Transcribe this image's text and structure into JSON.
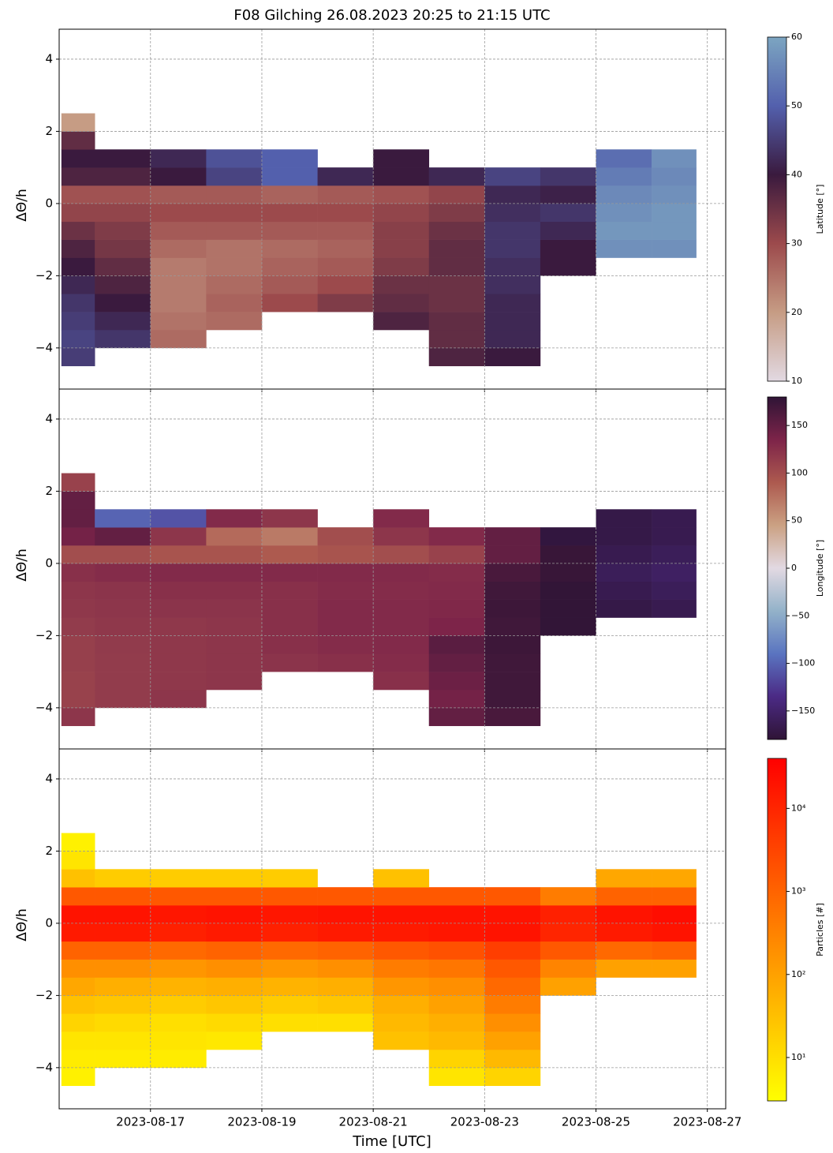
{
  "chart_data": [
    {
      "type": "heatmap",
      "title": "F08 Gilching 26.08.2023 20:25 to 21:15 UTC",
      "ylabel": "ΔΘ/h",
      "xlim": [
        15.36,
        27.33
      ],
      "xticks": [
        17,
        19,
        21,
        23,
        25,
        27
      ],
      "ylim": [
        -5.14,
        4.83
      ],
      "yticks": [
        {
          "value": -4,
          "label": "−4"
        },
        {
          "value": -2,
          "label": "−2"
        },
        0,
        2,
        4
      ],
      "grid": true,
      "xbins": [
        15.4,
        16,
        17,
        18,
        19,
        20,
        21,
        22,
        23,
        24,
        25,
        26,
        26.8
      ],
      "ybins": [
        -4.5,
        -4,
        -3.5,
        -3,
        -2.5,
        -2,
        -1.5,
        -1,
        -0.5,
        0,
        0.5,
        1,
        1.5,
        2,
        2.5
      ],
      "z": [
        [
          45,
          null,
          null,
          null,
          null,
          null,
          null,
          38,
          40,
          null,
          null,
          null
        ],
        [
          46,
          44,
          26,
          null,
          null,
          null,
          null,
          36,
          42,
          null,
          null,
          null
        ],
        [
          45,
          42,
          25,
          26,
          null,
          null,
          38,
          36,
          42,
          null,
          null,
          null
        ],
        [
          44,
          40,
          24,
          27,
          30,
          33,
          36,
          35,
          42,
          null,
          null,
          null
        ],
        [
          42,
          38,
          24,
          26,
          28,
          30,
          35,
          35,
          43,
          null,
          null,
          null
        ],
        [
          40,
          36,
          24,
          25,
          27,
          28,
          33,
          36,
          43,
          40,
          null,
          null
        ],
        [
          38,
          34,
          26,
          25,
          26,
          27,
          32,
          36,
          44,
          40,
          57,
          57
        ],
        [
          35,
          33,
          28,
          28,
          28,
          28,
          32,
          35,
          44,
          42,
          58,
          58
        ],
        [
          31,
          31,
          30,
          30,
          30,
          30,
          31,
          33,
          43,
          44,
          57,
          58
        ],
        [
          29,
          29,
          28,
          28,
          27,
          28,
          29,
          31,
          42,
          41,
          56,
          57
        ],
        [
          38,
          38,
          40,
          46,
          50,
          42,
          40,
          42,
          46,
          44,
          54,
          56
        ],
        [
          40,
          40,
          42,
          48,
          50,
          null,
          40,
          null,
          null,
          null,
          52,
          57
        ],
        [
          36,
          null,
          null,
          null,
          null,
          null,
          null,
          null,
          null,
          null,
          null,
          null
        ],
        [
          20,
          null,
          null,
          null,
          null,
          null,
          null,
          null,
          null,
          null,
          null,
          null
        ]
      ],
      "colorbar": {
        "label": "Latitude [°]",
        "lim": [
          10,
          60
        ],
        "ticks": [
          10,
          20,
          30,
          40,
          50,
          60
        ],
        "log": false,
        "colors": [
          "#e2d9e2",
          "#c69c84",
          "#9c4a4c",
          "#3a1a3e",
          "#5360ad",
          "#7ca5c1"
        ]
      }
    },
    {
      "type": "heatmap",
      "ylabel": "ΔΘ/h",
      "xlim": [
        15.36,
        27.33
      ],
      "xticks": [
        17,
        19,
        21,
        23,
        25,
        27
      ],
      "ylim": [
        -5.14,
        4.83
      ],
      "yticks": [
        {
          "value": -4,
          "label": "−4"
        },
        {
          "value": -2,
          "label": "−2"
        },
        0,
        2,
        4
      ],
      "grid": true,
      "xbins": [
        15.4,
        16,
        17,
        18,
        19,
        20,
        21,
        22,
        23,
        24,
        25,
        26,
        26.8
      ],
      "ybins": [
        -4.5,
        -4,
        -3.5,
        -3,
        -2.5,
        -2,
        -1.5,
        -1,
        -0.5,
        0,
        0.5,
        1,
        1.5,
        2,
        2.5
      ],
      "z": [
        [
          120,
          null,
          null,
          null,
          null,
          null,
          null,
          150,
          165,
          null,
          null,
          null
        ],
        [
          110,
          115,
          120,
          null,
          null,
          null,
          null,
          140,
          170,
          null,
          null,
          null
        ],
        [
          110,
          115,
          118,
          120,
          null,
          null,
          125,
          145,
          170,
          null,
          null,
          null
        ],
        [
          112,
          115,
          118,
          120,
          122,
          125,
          128,
          150,
          170,
          null,
          null,
          null
        ],
        [
          112,
          116,
          118,
          120,
          125,
          128,
          130,
          155,
          172,
          null,
          null,
          null
        ],
        [
          115,
          118,
          118,
          120,
          125,
          130,
          130,
          135,
          170,
          178,
          null,
          null
        ],
        [
          118,
          120,
          122,
          122,
          125,
          130,
          130,
          132,
          172,
          178,
          -170,
          -165
        ],
        [
          120,
          122,
          125,
          125,
          125,
          128,
          128,
          130,
          170,
          178,
          -165,
          -160
        ],
        [
          125,
          128,
          130,
          130,
          130,
          130,
          130,
          128,
          165,
          175,
          -160,
          -155
        ],
        [
          100,
          100,
          95,
          95,
          90,
          95,
          100,
          110,
          150,
          175,
          -165,
          -160
        ],
        [
          140,
          150,
          120,
          80,
          70,
          100,
          120,
          130,
          150,
          -175,
          -170,
          -165
        ],
        [
          150,
          -100,
          -110,
          130,
          120,
          null,
          130,
          null,
          null,
          null,
          -170,
          -165
        ],
        [
          150,
          null,
          null,
          null,
          null,
          null,
          null,
          null,
          null,
          null,
          null,
          null
        ],
        [
          110,
          null,
          null,
          null,
          null,
          null,
          null,
          null,
          null,
          null,
          null,
          null
        ]
      ],
      "colorbar": {
        "label": "Longitude [°]",
        "lim": [
          -180,
          180
        ],
        "log": false,
        "ticks": [
          {
            "value": -150,
            "label": "−150"
          },
          {
            "value": -100,
            "label": "−100"
          },
          {
            "value": -50,
            "label": "−50"
          },
          0,
          50,
          100,
          150
        ],
        "colors": [
          "#2f1436",
          "#4b2a85",
          "#5a74c0",
          "#93b2c9",
          "#e2d9e2",
          "#cba183",
          "#ad5a4f",
          "#7d2449",
          "#2f1436"
        ]
      }
    },
    {
      "type": "heatmap",
      "ylabel": "ΔΘ/h",
      "xlabel": "Time [UTC]",
      "xlim": [
        15.36,
        27.33
      ],
      "xticks": [
        {
          "value": 17,
          "label": "2023-08-17"
        },
        {
          "value": 19,
          "label": "2023-08-19"
        },
        {
          "value": 21,
          "label": "2023-08-21"
        },
        {
          "value": 23,
          "label": "2023-08-23"
        },
        {
          "value": 25,
          "label": "2023-08-25"
        },
        {
          "value": 27,
          "label": "2023-08-27"
        }
      ],
      "ylim": [
        -5.14,
        4.83
      ],
      "yticks": [
        {
          "value": -4,
          "label": "−4"
        },
        {
          "value": -2,
          "label": "−2"
        },
        0,
        2,
        4
      ],
      "grid": true,
      "xbins": [
        15.4,
        16,
        17,
        18,
        19,
        20,
        21,
        22,
        23,
        24,
        25,
        26,
        26.8
      ],
      "ybins": [
        -4.5,
        -4,
        -3.5,
        -3,
        -2.5,
        -2,
        -1.5,
        -1,
        -0.5,
        0,
        0.5,
        1,
        1.5,
        2,
        2.5
      ],
      "z": [
        [
          5,
          null,
          null,
          null,
          null,
          null,
          null,
          8,
          15,
          null,
          null,
          null
        ],
        [
          6,
          6,
          6,
          null,
          null,
          null,
          null,
          15,
          40,
          null,
          null,
          null
        ],
        [
          8,
          8,
          8,
          7,
          null,
          null,
          30,
          40,
          100,
          null,
          null,
          null
        ],
        [
          15,
          12,
          10,
          12,
          10,
          10,
          40,
          60,
          200,
          null,
          null,
          null
        ],
        [
          30,
          25,
          20,
          25,
          20,
          25,
          60,
          100,
          400,
          null,
          null,
          null
        ],
        [
          80,
          60,
          50,
          60,
          50,
          60,
          150,
          200,
          800,
          100,
          null,
          null
        ],
        [
          200,
          200,
          150,
          200,
          150,
          200,
          400,
          500,
          1500,
          300,
          100,
          100
        ],
        [
          1000,
          1000,
          800,
          1000,
          800,
          1000,
          1500,
          2000,
          4000,
          1500,
          800,
          1000
        ],
        [
          15000,
          15000,
          12000,
          15000,
          12000,
          15000,
          15000,
          18000,
          20000,
          10000,
          15000,
          20000
        ],
        [
          20000,
          20000,
          18000,
          20000,
          18000,
          20000,
          20000,
          20000,
          20000,
          12000,
          20000,
          25000
        ],
        [
          1500,
          1500,
          1500,
          1500,
          1500,
          1500,
          1500,
          1500,
          1500,
          400,
          1000,
          1000
        ],
        [
          30,
          20,
          20,
          20,
          20,
          null,
          30,
          null,
          null,
          null,
          80,
          80
        ],
        [
          8,
          null,
          null,
          null,
          null,
          null,
          null,
          null,
          null,
          null,
          null,
          null
        ],
        [
          5,
          null,
          null,
          null,
          null,
          null,
          null,
          null,
          null,
          null,
          null,
          null
        ]
      ],
      "colorbar": {
        "label": "Particles [#]",
        "lim": [
          3,
          40000
        ],
        "log": true,
        "ticks": [
          {
            "value": 10,
            "label": "10¹"
          },
          {
            "value": 100,
            "label": "10²"
          },
          {
            "value": 1000,
            "label": "10³"
          },
          {
            "value": 10000,
            "label": "10⁴"
          }
        ],
        "colors": [
          "#ffff00",
          "#ffbf00",
          "#ff8000",
          "#ff4000",
          "#ff0000"
        ]
      }
    }
  ]
}
